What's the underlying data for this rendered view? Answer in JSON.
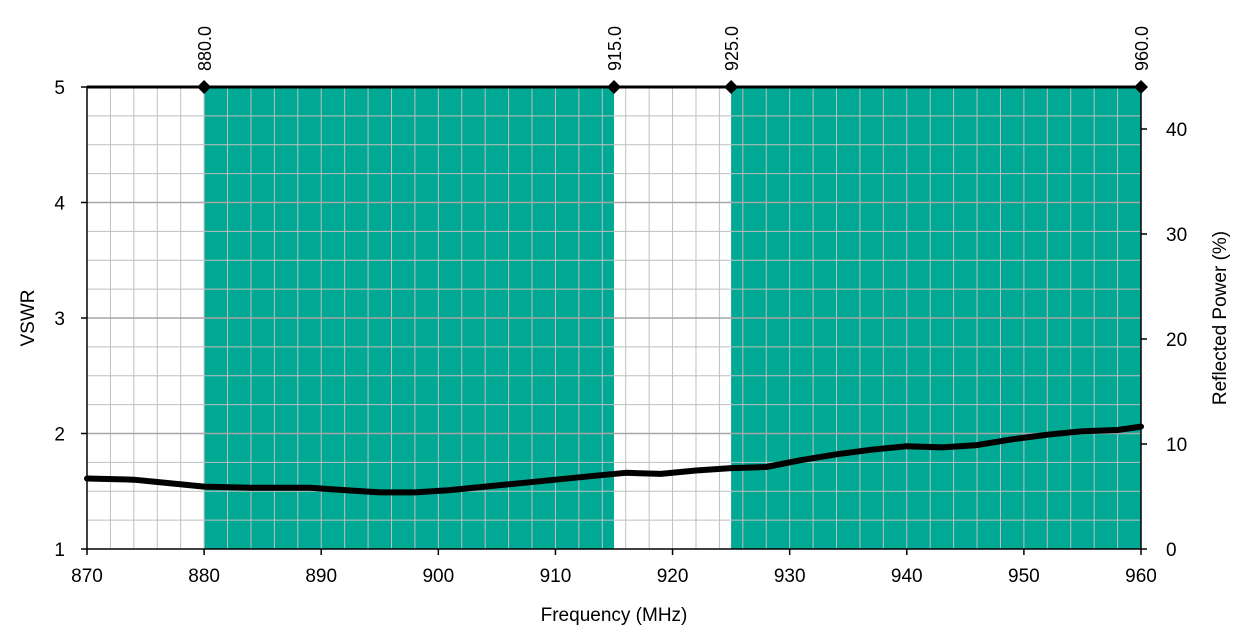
{
  "colors": {
    "band_fill": "#00A994",
    "grid_line": "#BFBFBF",
    "series_line": "#000000",
    "frame": "#000000",
    "background": "#FFFFFF"
  },
  "chart_data": {
    "type": "line",
    "xlabel": "Frequency (MHz)",
    "ylabel": "VSWR",
    "y2label": "Reflected Power (%)",
    "xlim": [
      870,
      960
    ],
    "ylim": [
      1,
      5
    ],
    "y2lim": [
      0,
      44
    ],
    "x_ticks": [
      "870",
      "880",
      "890",
      "900",
      "910",
      "920",
      "930",
      "940",
      "950",
      "960"
    ],
    "y_ticks": [
      "1",
      "2",
      "3",
      "4",
      "5"
    ],
    "y2_ticks": [
      "0",
      "10",
      "20",
      "30",
      "40"
    ],
    "grid": true,
    "bands": [
      {
        "start": 880,
        "end": 915
      },
      {
        "start": 925,
        "end": 960
      }
    ],
    "band_markers": [
      {
        "x": 880,
        "label": "880.0"
      },
      {
        "x": 915,
        "label": "915.0"
      },
      {
        "x": 925,
        "label": "925.0"
      },
      {
        "x": 960,
        "label": "960.0"
      }
    ],
    "series": [
      {
        "x": [
          870,
          874,
          876,
          880,
          884,
          886,
          889,
          892,
          895,
          898,
          901,
          904,
          907,
          910,
          913,
          916,
          919,
          922,
          925,
          928,
          931,
          934,
          937,
          940,
          943,
          946,
          949,
          952,
          955,
          958,
          960
        ],
        "values": [
          1.61,
          1.6,
          1.58,
          1.54,
          1.53,
          1.53,
          1.53,
          1.51,
          1.49,
          1.49,
          1.51,
          1.54,
          1.57,
          1.6,
          1.63,
          1.66,
          1.65,
          1.68,
          1.7,
          1.71,
          1.77,
          1.82,
          1.86,
          1.89,
          1.88,
          1.9,
          1.95,
          1.99,
          2.02,
          2.03,
          2.06
        ]
      }
    ]
  }
}
